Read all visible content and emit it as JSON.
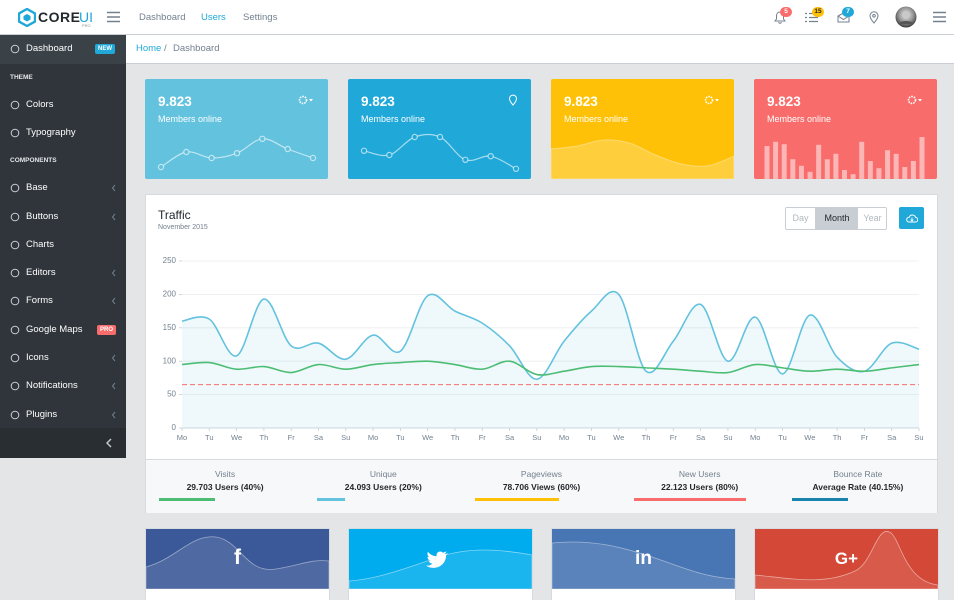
{
  "header": {
    "logo": "CORE",
    "logo_accent": "UI",
    "logo_sub": "PRO",
    "nav": [
      {
        "label": "Dashboard"
      },
      {
        "label": "Users",
        "active": true
      },
      {
        "label": "Settings"
      }
    ],
    "badges": [
      {
        "text": "5",
        "color": "#f86c6b",
        "text_color": "#fff"
      },
      {
        "text": "15",
        "color": "#ffc107",
        "text_color": "#23282c"
      },
      {
        "text": "7",
        "color": "#20a8d8",
        "text_color": "#fff"
      }
    ]
  },
  "sidebar": [
    {
      "label": "Dashboard",
      "badge": "NEW",
      "badge_color": "#20a8d8",
      "active": true
    },
    {
      "title": "THEME"
    },
    {
      "label": "Colors"
    },
    {
      "label": "Typography"
    },
    {
      "title": "COMPONENTS"
    },
    {
      "label": "Base",
      "arrow": true
    },
    {
      "label": "Buttons",
      "arrow": true
    },
    {
      "label": "Charts"
    },
    {
      "label": "Editors",
      "arrow": true
    },
    {
      "label": "Forms",
      "arrow": true
    },
    {
      "label": "Google Maps",
      "badge": "PRO",
      "badge_color": "#f86c6b"
    },
    {
      "label": "Icons",
      "arrow": true
    },
    {
      "label": "Notifications",
      "arrow": true
    },
    {
      "label": "Plugins",
      "arrow": true
    }
  ],
  "breadcrumb": {
    "items": [
      "Home",
      "Dashboard"
    ],
    "separator": "/"
  },
  "cards": [
    {
      "value": "9.823",
      "label": "Members online",
      "color": "#63c2de"
    },
    {
      "value": "9.823",
      "label": "Members online",
      "color": "#20a8d8"
    },
    {
      "value": "9.823",
      "label": "Members online",
      "color": "#ffc107"
    },
    {
      "value": "9.823",
      "label": "Members online",
      "color": "#f86c6b"
    }
  ],
  "traffic_controls": {
    "buttons": [
      "Day",
      "Month",
      "Year"
    ],
    "active": 1
  },
  "chart_data": [
    {
      "type": "line",
      "title": "Traffic",
      "subtitle": "November 2015",
      "categories": [
        "Mo",
        "Tu",
        "We",
        "Th",
        "Fr",
        "Sa",
        "Su",
        "Mo",
        "Tu",
        "We",
        "Th",
        "Fr",
        "Sa",
        "Su",
        "Mo",
        "Tu",
        "We",
        "Th",
        "Fr",
        "Sa",
        "Su",
        "Mo",
        "Tu",
        "We",
        "Th",
        "Fr",
        "Sa",
        "Su"
      ],
      "series": [
        {
          "color": "#63c2de",
          "area": true,
          "values": [
            160,
            163,
            108,
            193,
            123,
            127,
            103,
            139,
            115,
            198,
            175,
            157,
            123,
            73,
            130,
            175,
            200,
            85,
            130,
            185,
            100,
            166,
            81,
            169,
            106,
            85,
            127,
            118
          ]
        },
        {
          "color": "#4dbd74",
          "values": [
            95,
            98,
            88,
            92,
            83,
            95,
            88,
            95,
            98,
            100,
            95,
            88,
            100,
            80,
            85,
            92,
            92,
            90,
            88,
            85,
            83,
            95,
            90,
            85,
            88,
            85,
            90,
            95
          ]
        },
        {
          "color": "#f86c6b",
          "dash": true,
          "values": [
            65,
            65,
            65,
            65,
            65,
            65,
            65,
            65,
            65,
            65,
            65,
            65,
            65,
            65,
            65,
            65,
            65,
            65,
            65,
            65,
            65,
            65,
            65,
            65,
            65,
            65,
            65,
            65
          ]
        }
      ],
      "ylim": [
        0,
        250
      ],
      "yticks": [
        0,
        50,
        100,
        150,
        200,
        250
      ],
      "grid": true
    },
    {
      "type": "line",
      "points": true,
      "color": "rgba(255,255,255,0.6)",
      "values": [
        20,
        45,
        35,
        43,
        67,
        50,
        35
      ],
      "ylim": [
        0,
        100
      ]
    },
    {
      "type": "line",
      "points": true,
      "color": "rgba(255,255,255,0.6)",
      "values": [
        47,
        40,
        70,
        70,
        32,
        38,
        17
      ],
      "ylim": [
        0,
        100
      ]
    },
    {
      "type": "area",
      "color": "rgba(255,255,255,0.22)",
      "values": [
        50,
        55,
        65,
        60,
        40,
        25,
        22,
        38
      ],
      "ylim": [
        0,
        100
      ]
    },
    {
      "type": "bar",
      "color": "rgba(255,255,255,0.5)",
      "values": [
        55,
        62,
        58,
        33,
        22,
        12,
        57,
        33,
        42,
        15,
        8,
        62,
        30,
        18,
        48,
        42,
        20,
        30,
        70
      ],
      "ylim": [
        0,
        100
      ]
    }
  ],
  "traffic_stats": [
    {
      "label": "Visits",
      "value": "29.703 Users (40%)",
      "percent": 40,
      "color": "#4dbd74"
    },
    {
      "label": "Unique",
      "value": "24.093 Users (20%)",
      "percent": 20,
      "color": "#63c2de"
    },
    {
      "label": "Pageviews",
      "value": "78.706 Views (60%)",
      "percent": 60,
      "color": "#ffc107"
    },
    {
      "label": "New Users",
      "value": "22.123 Users (80%)",
      "percent": 80,
      "color": "#f86c6b"
    },
    {
      "label": "Bounce Rate",
      "value": "Average Rate (40.15%)",
      "percent": 40.15,
      "color": "#1985ac"
    }
  ],
  "social": {
    "facebook": "f",
    "linkedin": "in",
    "google": "G+"
  }
}
